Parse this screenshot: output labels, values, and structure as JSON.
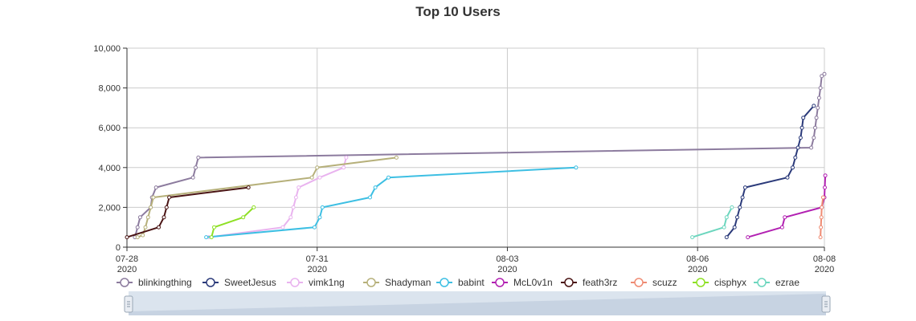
{
  "chart_data": {
    "type": "line",
    "title": "Top 10 Users",
    "xlabel": "",
    "ylabel": "",
    "x_axis_type": "time",
    "xlim": [
      "2020-07-28",
      "2020-08-08"
    ],
    "ylim": [
      0,
      10000
    ],
    "grid": true,
    "legend_position": "bottom",
    "x_ticks": [
      {
        "value": "2020-07-28",
        "label": "07-28",
        "year": "2020"
      },
      {
        "value": "2020-07-31",
        "label": "07-31",
        "year": "2020"
      },
      {
        "value": "2020-08-03",
        "label": "08-03",
        "year": "2020"
      },
      {
        "value": "2020-08-06",
        "label": "08-06",
        "year": "2020"
      },
      {
        "value": "2020-08-08",
        "label": "08-08",
        "year": "2020"
      }
    ],
    "y_ticks": [
      {
        "value": 0,
        "label": "0"
      },
      {
        "value": 2000,
        "label": "2,000"
      },
      {
        "value": 4000,
        "label": "4,000"
      },
      {
        "value": 6000,
        "label": "6,000"
      },
      {
        "value": 8000,
        "label": "8,000"
      },
      {
        "value": 10000,
        "label": "10,000"
      }
    ],
    "series": [
      {
        "name": "blinkingthing",
        "color": "#8c7b9e",
        "points": [
          [
            "2020-07-28 03:00",
            500
          ],
          [
            "2020-07-28 04:00",
            1000
          ],
          [
            "2020-07-28 05:00",
            1500
          ],
          [
            "2020-07-28 09:00",
            2000
          ],
          [
            "2020-07-28 09:30",
            2500
          ],
          [
            "2020-07-28 11:00",
            3000
          ],
          [
            "2020-07-29 01:00",
            3500
          ],
          [
            "2020-07-29 02:00",
            4000
          ],
          [
            "2020-07-29 03:00",
            4500
          ],
          [
            "2020-08-07 19:00",
            5000
          ],
          [
            "2020-08-07 20:00",
            5500
          ],
          [
            "2020-08-07 20:30",
            6000
          ],
          [
            "2020-08-07 21:00",
            6500
          ],
          [
            "2020-08-07 21:30",
            7000
          ],
          [
            "2020-08-07 22:00",
            7500
          ],
          [
            "2020-08-07 22:30",
            8000
          ],
          [
            "2020-08-07 23:00",
            8600
          ],
          [
            "2020-08-08 00:00",
            8700
          ]
        ]
      },
      {
        "name": "SweetJesus",
        "color": "#2b3a7a",
        "points": [
          [
            "2020-08-06 11:00",
            500
          ],
          [
            "2020-08-06 14:00",
            1000
          ],
          [
            "2020-08-06 15:00",
            1500
          ],
          [
            "2020-08-06 16:00",
            2000
          ],
          [
            "2020-08-06 17:00",
            2500
          ],
          [
            "2020-08-06 18:00",
            3000
          ],
          [
            "2020-08-07 10:00",
            3500
          ],
          [
            "2020-08-07 12:00",
            4000
          ],
          [
            "2020-08-07 13:00",
            4500
          ],
          [
            "2020-08-07 14:00",
            5000
          ],
          [
            "2020-08-07 15:00",
            5500
          ],
          [
            "2020-08-07 15:30",
            6000
          ],
          [
            "2020-08-07 16:00",
            6500
          ],
          [
            "2020-08-07 20:00",
            7100
          ]
        ]
      },
      {
        "name": "vimk1ng",
        "color": "#e9b3ef",
        "points": [
          [
            "2020-07-29 07:00",
            500
          ],
          [
            "2020-07-30 11:00",
            1000
          ],
          [
            "2020-07-30 14:00",
            1500
          ],
          [
            "2020-07-30 15:00",
            2000
          ],
          [
            "2020-07-30 16:00",
            2500
          ],
          [
            "2020-07-30 17:00",
            3000
          ],
          [
            "2020-07-31 01:00",
            3500
          ],
          [
            "2020-07-31 10:00",
            4000
          ],
          [
            "2020-07-31 11:00",
            4500
          ]
        ]
      },
      {
        "name": "Shadyman",
        "color": "#b6b07a",
        "points": [
          [
            "2020-07-28 04:00",
            500
          ],
          [
            "2020-07-28 06:00",
            600
          ],
          [
            "2020-07-28 07:00",
            1000
          ],
          [
            "2020-07-28 08:00",
            1500
          ],
          [
            "2020-07-28 09:00",
            2000
          ],
          [
            "2020-07-28 10:00",
            2500
          ],
          [
            "2020-07-30 22:00",
            3500
          ],
          [
            "2020-07-31 00:00",
            4000
          ],
          [
            "2020-08-01 06:00",
            4500
          ]
        ]
      },
      {
        "name": "babint",
        "color": "#3dbfe3",
        "points": [
          [
            "2020-07-29 06:00",
            500
          ],
          [
            "2020-07-30 23:00",
            1000
          ],
          [
            "2020-07-31 01:00",
            1500
          ],
          [
            "2020-07-31 02:00",
            2000
          ],
          [
            "2020-07-31 20:00",
            2500
          ],
          [
            "2020-07-31 22:00",
            3000
          ],
          [
            "2020-08-01 03:00",
            3500
          ],
          [
            "2020-08-04 02:00",
            4000
          ]
        ]
      },
      {
        "name": "McL0v1n",
        "color": "#b221b2",
        "points": [
          [
            "2020-08-06 19:00",
            500
          ],
          [
            "2020-08-07 08:00",
            1000
          ],
          [
            "2020-08-07 09:00",
            1500
          ],
          [
            "2020-08-07 23:00",
            2000
          ],
          [
            "2020-08-08 00:00",
            2500
          ],
          [
            "2020-08-08 00:10",
            3000
          ],
          [
            "2020-08-08 00:20",
            3600
          ]
        ]
      },
      {
        "name": "feath3rz",
        "color": "#4a1414",
        "points": [
          [
            "2020-07-28 00:00",
            500
          ],
          [
            "2020-07-28 12:00",
            1000
          ],
          [
            "2020-07-28 14:00",
            1500
          ],
          [
            "2020-07-28 15:00",
            2000
          ],
          [
            "2020-07-28 16:00",
            2500
          ],
          [
            "2020-07-29 22:00",
            3000
          ]
        ]
      },
      {
        "name": "scuzz",
        "color": "#ef8b73",
        "points": [
          [
            "2020-08-07 22:30",
            500
          ],
          [
            "2020-08-07 22:40",
            1000
          ],
          [
            "2020-08-07 22:50",
            1500
          ],
          [
            "2020-08-07 23:00",
            2000
          ],
          [
            "2020-08-07 23:30",
            2500
          ]
        ]
      },
      {
        "name": "cisphyx",
        "color": "#8ee024",
        "points": [
          [
            "2020-07-29 08:00",
            500
          ],
          [
            "2020-07-29 09:00",
            1000
          ],
          [
            "2020-07-29 20:00",
            1500
          ],
          [
            "2020-07-30 00:00",
            2000
          ]
        ]
      },
      {
        "name": "ezrae",
        "color": "#6cd6be",
        "points": [
          [
            "2020-08-05 22:00",
            500
          ],
          [
            "2020-08-06 10:00",
            1000
          ],
          [
            "2020-08-06 11:00",
            1500
          ],
          [
            "2020-08-06 13:00",
            2000
          ]
        ]
      }
    ]
  },
  "zoom_slider": {}
}
